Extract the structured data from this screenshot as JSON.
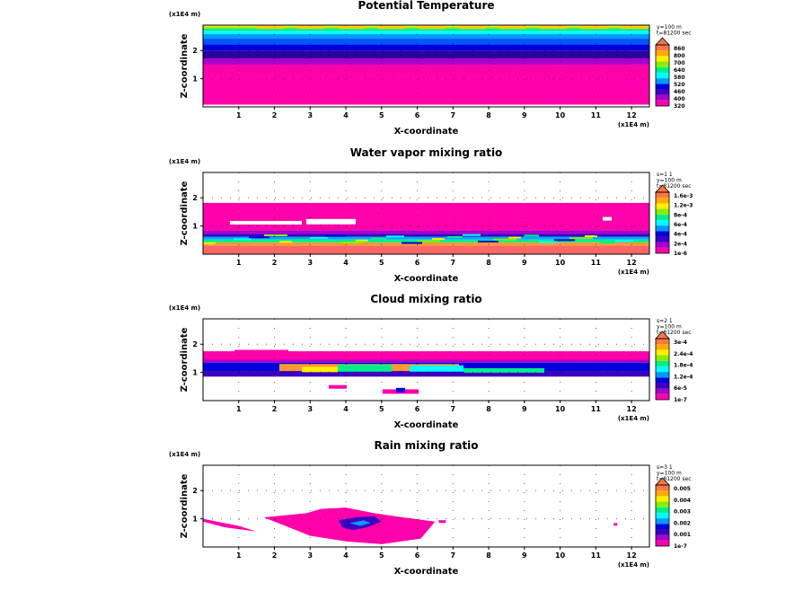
{
  "chart_data": [
    {
      "type": "heatmap",
      "title": "Potential Temperature",
      "xlabel": "X-coordinate",
      "ylabel": "Z-coordinate",
      "x_unit": "(x1E4 m)",
      "z_unit": "(x1E4 m)",
      "x_ticks": [
        "1",
        "2",
        "3",
        "4",
        "5",
        "6",
        "7",
        "8",
        "9",
        "10",
        "11",
        "12"
      ],
      "y_ticks": [
        "1",
        "2"
      ],
      "xlim": [
        0,
        12.5
      ],
      "ylim": [
        0,
        2.9
      ],
      "info": [
        "y=100 m",
        "t=81200 sec"
      ],
      "colorbar_labels": [
        "320",
        "400",
        "460",
        "520",
        "580",
        "640",
        "700",
        "800",
        "860"
      ],
      "colors": [
        "#ff00aa",
        "#aa00cc",
        "#3c00c0",
        "#0000dd",
        "#0099ff",
        "#00ffff",
        "#00ee88",
        "#88ee00",
        "#ffee00",
        "#ffaa00",
        "#ff7744"
      ],
      "bands": [
        {
          "z0": 0.08,
          "z1": 1.5,
          "c": "#ff00aa"
        },
        {
          "z0": 1.5,
          "z1": 1.72,
          "c": "#aa00cc"
        },
        {
          "z0": 1.72,
          "z1": 2.0,
          "c": "#2b00a0"
        },
        {
          "z0": 2.0,
          "z1": 2.22,
          "c": "#0000dd"
        },
        {
          "z0": 2.22,
          "z1": 2.42,
          "c": "#0055ff"
        },
        {
          "z0": 2.42,
          "z1": 2.58,
          "c": "#0099ff"
        },
        {
          "z0": 2.58,
          "z1": 2.7,
          "c": "#00ffff"
        },
        {
          "z0": 2.7,
          "z1": 2.78,
          "c": "#00ee88"
        },
        {
          "z0": 2.78,
          "z1": 2.84,
          "c": "#88ee00"
        },
        {
          "z0": 2.84,
          "z1": 2.88,
          "c": "#ffee00"
        },
        {
          "z0": 2.88,
          "z1": 2.9,
          "c": "#ff7744"
        }
      ]
    },
    {
      "type": "heatmap",
      "title": "Water vapor mixing ratio",
      "xlabel": "X-coordinate",
      "ylabel": "Z-coordinate",
      "x_unit": "(x1E4 m)",
      "z_unit": "(x1E4 m)",
      "x_ticks": [
        "1",
        "2",
        "3",
        "4",
        "5",
        "6",
        "7",
        "8",
        "9",
        "10",
        "11",
        "12"
      ],
      "y_ticks": [
        "1",
        "2"
      ],
      "xlim": [
        0,
        12.5
      ],
      "ylim": [
        0,
        2.9
      ],
      "info": [
        "s=1 1",
        "y=100 m",
        "t=81200 sec"
      ],
      "colorbar_labels": [
        "1e-6",
        "2e-4",
        "4e-4",
        "6e-4",
        "8e-4",
        "1.2e-3",
        "1.6e-3"
      ],
      "colors": [
        "#ff00aa",
        "#aa00cc",
        "#3c00c0",
        "#0000dd",
        "#0099ff",
        "#00ffff",
        "#00ee88",
        "#88ee00",
        "#ffee00",
        "#ffaa00",
        "#ff7744"
      ],
      "bands": [
        {
          "z0": 0.0,
          "z1": 0.3,
          "c": "#ff6666"
        },
        {
          "z0": 0.3,
          "z1": 0.42,
          "c": "#ff9933"
        },
        {
          "z0": 0.42,
          "z1": 0.52,
          "c": "#00ee88"
        },
        {
          "z0": 0.52,
          "z1": 0.62,
          "c": "#00aaff"
        },
        {
          "z0": 0.62,
          "z1": 0.72,
          "c": "#3c00c0"
        },
        {
          "z0": 0.72,
          "z1": 0.85,
          "c": "#aa00cc"
        },
        {
          "z0": 0.85,
          "z1": 1.82,
          "c": "#ff00aa"
        }
      ]
    },
    {
      "type": "heatmap",
      "title": "Cloud mixing ratio",
      "xlabel": "X-coordinate",
      "ylabel": "Z-coordinate",
      "x_unit": "(x1E4 m)",
      "z_unit": "(x1E4 m)",
      "x_ticks": [
        "1",
        "2",
        "3",
        "4",
        "5",
        "6",
        "7",
        "8",
        "9",
        "10",
        "11",
        "12"
      ],
      "y_ticks": [
        "1",
        "2"
      ],
      "xlim": [
        0,
        12.5
      ],
      "ylim": [
        0,
        2.9
      ],
      "info": [
        "s=2 1",
        "y=100 m",
        "t=81200 sec"
      ],
      "colorbar_labels": [
        "1e-7",
        "6e-5",
        "1.2e-4",
        "1.8e-4",
        "2.4e-4",
        "3e-4"
      ],
      "colors": [
        "#ff00aa",
        "#aa00cc",
        "#3c00c0",
        "#0000dd",
        "#0099ff",
        "#00ffff",
        "#00ee88",
        "#88ee00",
        "#ffee00",
        "#ffaa00",
        "#ff7744"
      ],
      "bands": [
        {
          "z0": 0.85,
          "z1": 1.05,
          "c": "#3c00c0"
        },
        {
          "z0": 1.05,
          "z1": 1.35,
          "c": "#0000dd"
        },
        {
          "z0": 1.35,
          "z1": 1.45,
          "c": "#aa00cc"
        },
        {
          "z0": 1.45,
          "z1": 1.75,
          "c": "#ff00aa"
        }
      ]
    },
    {
      "type": "heatmap",
      "title": "Rain mixing ratio",
      "xlabel": "X-coordinate",
      "ylabel": "Z-coordinate",
      "x_unit": "(x1E4 m)",
      "z_unit": "(x1E4 m)",
      "x_ticks": [
        "1",
        "2",
        "3",
        "4",
        "5",
        "6",
        "7",
        "8",
        "9",
        "10",
        "11",
        "12"
      ],
      "y_ticks": [
        "1",
        "2"
      ],
      "xlim": [
        0,
        12.5
      ],
      "ylim": [
        0,
        2.9
      ],
      "info": [
        "s=3 1",
        "y=100 m",
        "t=81200 sec"
      ],
      "colorbar_labels": [
        "1e-7",
        "0.001",
        "0.002",
        "0.003",
        "0.004",
        "0.005"
      ],
      "colors": [
        "#ff00aa",
        "#aa00cc",
        "#3c00c0",
        "#0000dd",
        "#0099ff",
        "#00ffff",
        "#00ee88",
        "#88ee00",
        "#ffee00",
        "#ffaa00",
        "#ff7744"
      ],
      "bands": []
    }
  ]
}
